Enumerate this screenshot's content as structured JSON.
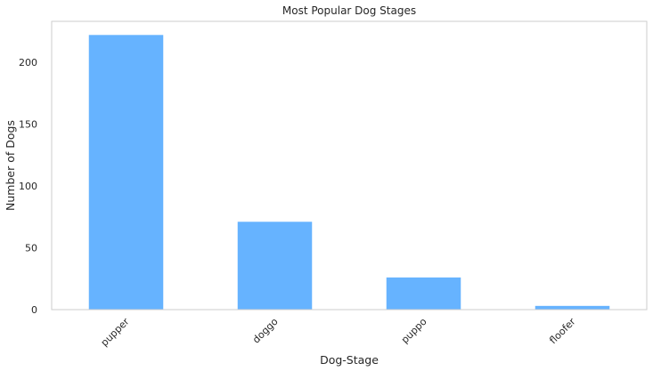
{
  "chart_data": {
    "type": "bar",
    "title": "Most Popular Dog Stages",
    "xlabel": "Dog-Stage",
    "ylabel": "Number of Dogs",
    "categories": [
      "pupper",
      "doggo",
      "puppo",
      "floofer"
    ],
    "values": [
      222,
      71,
      26,
      3
    ],
    "ylim": [
      0,
      233
    ],
    "yticks": [
      0,
      50,
      100,
      150,
      200
    ],
    "bar_color": "#66b3ff",
    "grid": false,
    "legend": "none"
  }
}
